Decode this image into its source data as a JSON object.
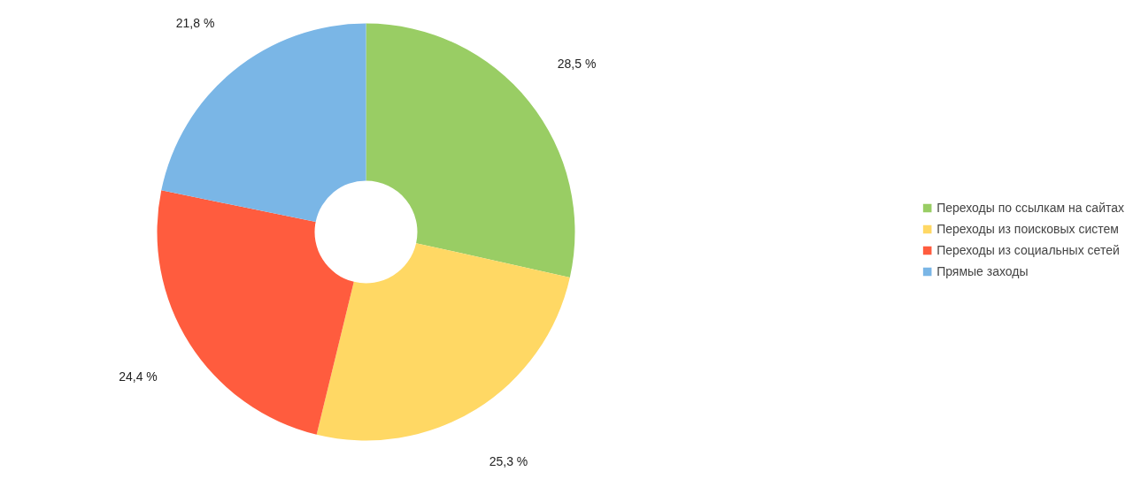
{
  "chart_data": {
    "type": "donut",
    "categories": [
      "Переходы по ссылкам на сайтах",
      "Переходы из поисковых систем",
      "Переходы из социальных сетей",
      "Прямые заходы"
    ],
    "values": [
      28.5,
      25.3,
      24.4,
      21.8
    ],
    "colors": [
      "#99cd64",
      "#ffd864",
      "#ff5c3e",
      "#7ab6e6"
    ],
    "value_labels": [
      "28,5 %",
      "25,3 %",
      "24,4 %",
      "21,8 %"
    ],
    "legend": "right"
  }
}
